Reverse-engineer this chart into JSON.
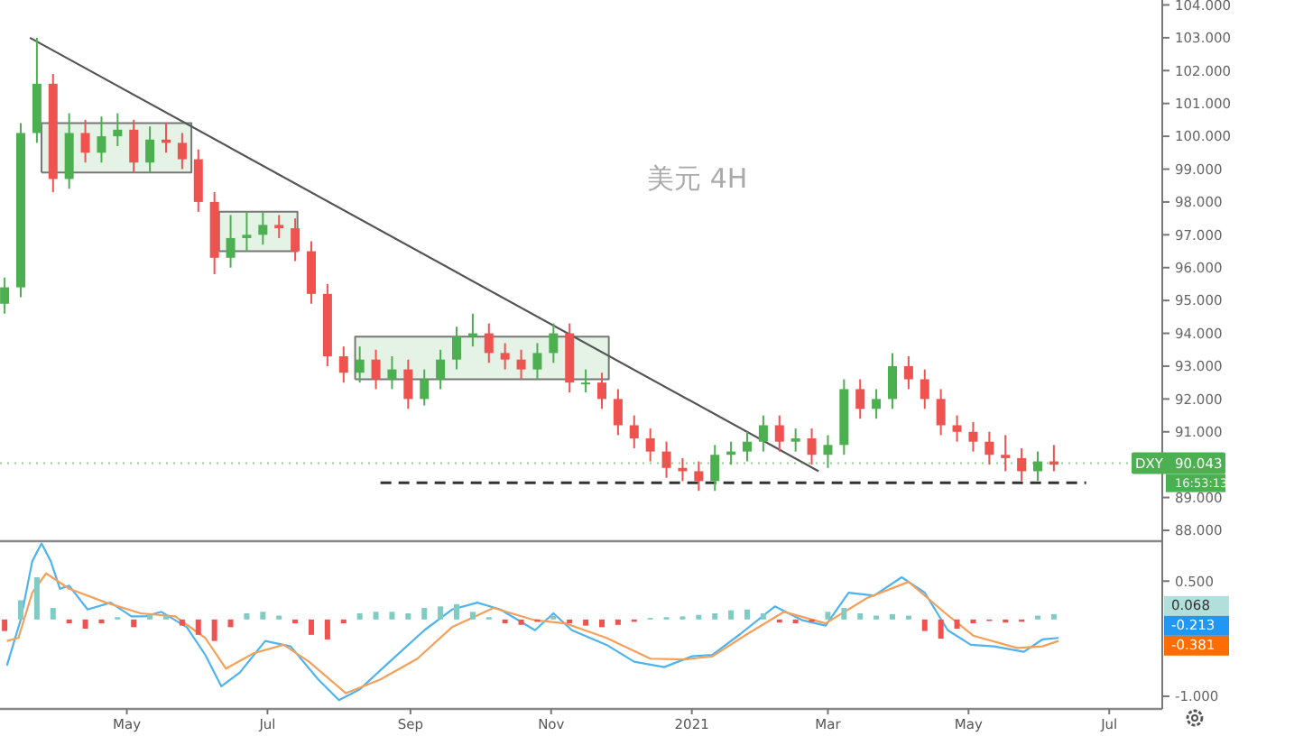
{
  "chart_data": [
    {
      "type": "candlestick",
      "title": "美元 4H",
      "xlim": [
        "2020-03-07",
        "2021-07-24"
      ],
      "ylim": [
        87.67,
        104.15
      ],
      "yticks": [
        {
          "value": 88,
          "label": "88.000"
        },
        {
          "value": 89,
          "label": "89.000"
        },
        {
          "value": 90,
          "label": null
        },
        {
          "value": 91,
          "label": "91.000"
        },
        {
          "value": 92,
          "label": "92.000"
        },
        {
          "value": 93,
          "label": "93.000"
        },
        {
          "value": 94,
          "label": "94.000"
        },
        {
          "value": 95,
          "label": "95.000"
        },
        {
          "value": 96,
          "label": "96.000"
        },
        {
          "value": 97,
          "label": "97.000"
        },
        {
          "value": 98,
          "label": "98.000"
        },
        {
          "value": 99,
          "label": "99.000"
        },
        {
          "value": 100,
          "label": "100.000"
        },
        {
          "value": 101,
          "label": "101.000"
        },
        {
          "value": 102,
          "label": "102.000"
        },
        {
          "value": 103,
          "label": "103.000"
        },
        {
          "value": 104,
          "label": "104.000"
        }
      ],
      "tick_labels": "y",
      "x": [
        "2020-03-09",
        "2020-03-16",
        "2020-03-23",
        "2020-03-30",
        "2020-04-06",
        "2020-04-13",
        "2020-04-20",
        "2020-04-27",
        "2020-05-04",
        "2020-05-11",
        "2020-05-18",
        "2020-05-25",
        "2020-06-01",
        "2020-06-08",
        "2020-06-15",
        "2020-06-22",
        "2020-06-29",
        "2020-07-06",
        "2020-07-13",
        "2020-07-20",
        "2020-07-27",
        "2020-08-03",
        "2020-08-10",
        "2020-08-17",
        "2020-08-24",
        "2020-08-31",
        "2020-09-07",
        "2020-09-14",
        "2020-09-21",
        "2020-09-28",
        "2020-10-05",
        "2020-10-12",
        "2020-10-19",
        "2020-10-26",
        "2020-11-02",
        "2020-11-09",
        "2020-11-16",
        "2020-11-23",
        "2020-11-30",
        "2020-12-07",
        "2020-12-14",
        "2020-12-21",
        "2020-12-28",
        "2021-01-04",
        "2021-01-11",
        "2021-01-18",
        "2021-01-25",
        "2021-02-01",
        "2021-02-08",
        "2021-02-15",
        "2021-02-22",
        "2021-03-01",
        "2021-03-08",
        "2021-03-15",
        "2021-03-22",
        "2021-03-29",
        "2021-04-05",
        "2021-04-12",
        "2021-04-19",
        "2021-04-26",
        "2021-05-03",
        "2021-05-10",
        "2021-05-17",
        "2021-05-24",
        "2021-05-31",
        "2021-06-07"
      ],
      "ohlc": [
        [
          94.9,
          95.7,
          94.6,
          95.4
        ],
        [
          95.4,
          100.4,
          95.1,
          100.1
        ],
        [
          100.1,
          103.0,
          99.8,
          101.6
        ],
        [
          101.6,
          101.9,
          98.3,
          98.7
        ],
        [
          98.7,
          100.7,
          98.4,
          100.1
        ],
        [
          100.1,
          100.5,
          99.2,
          99.5
        ],
        [
          99.5,
          100.6,
          99.2,
          100.0
        ],
        [
          100.0,
          100.7,
          99.7,
          100.2
        ],
        [
          100.2,
          100.5,
          98.9,
          99.2
        ],
        [
          99.2,
          100.3,
          98.9,
          99.9
        ],
        [
          99.9,
          100.4,
          99.5,
          99.8
        ],
        [
          99.8,
          100.1,
          99.0,
          99.3
        ],
        [
          99.3,
          99.6,
          97.7,
          98.0
        ],
        [
          98.0,
          98.3,
          95.8,
          96.3
        ],
        [
          96.3,
          97.6,
          96.0,
          96.9
        ],
        [
          96.9,
          97.7,
          96.5,
          97.0
        ],
        [
          97.0,
          97.7,
          96.7,
          97.3
        ],
        [
          97.3,
          97.6,
          96.9,
          97.2
        ],
        [
          97.2,
          97.5,
          96.2,
          96.5
        ],
        [
          96.5,
          96.8,
          94.9,
          95.2
        ],
        [
          95.2,
          95.5,
          93.0,
          93.3
        ],
        [
          93.3,
          93.6,
          92.5,
          92.8
        ],
        [
          92.8,
          93.6,
          92.5,
          93.2
        ],
        [
          93.2,
          93.5,
          92.3,
          92.6
        ],
        [
          92.6,
          93.3,
          92.3,
          92.9
        ],
        [
          92.9,
          93.2,
          91.7,
          92.0
        ],
        [
          92.0,
          92.9,
          91.8,
          92.6
        ],
        [
          92.6,
          93.5,
          92.3,
          93.2
        ],
        [
          93.2,
          94.2,
          92.9,
          93.9
        ],
        [
          93.9,
          94.6,
          93.6,
          94.0
        ],
        [
          94.0,
          94.3,
          93.1,
          93.4
        ],
        [
          93.4,
          93.7,
          92.9,
          93.2
        ],
        [
          93.2,
          93.5,
          92.6,
          92.9
        ],
        [
          92.9,
          93.7,
          92.6,
          93.4
        ],
        [
          93.4,
          94.3,
          93.1,
          94.0
        ],
        [
          94.0,
          94.3,
          92.2,
          92.5
        ],
        [
          92.5,
          92.9,
          92.2,
          92.5
        ],
        [
          92.5,
          92.8,
          91.7,
          92.0
        ],
        [
          92.0,
          92.3,
          90.9,
          91.2
        ],
        [
          91.2,
          91.5,
          90.5,
          90.8
        ],
        [
          90.8,
          91.1,
          90.1,
          90.4
        ],
        [
          90.4,
          90.7,
          89.6,
          89.9
        ],
        [
          89.9,
          90.2,
          89.5,
          89.8
        ],
        [
          89.8,
          90.1,
          89.2,
          89.5
        ],
        [
          89.5,
          90.6,
          89.2,
          90.3
        ],
        [
          90.3,
          90.7,
          90.0,
          90.4
        ],
        [
          90.4,
          91.0,
          90.1,
          90.7
        ],
        [
          90.7,
          91.5,
          90.4,
          91.2
        ],
        [
          91.2,
          91.5,
          90.4,
          90.7
        ],
        [
          90.7,
          91.1,
          90.4,
          90.8
        ],
        [
          90.8,
          91.1,
          90.0,
          90.3
        ],
        [
          90.3,
          90.9,
          89.9,
          90.6
        ],
        [
          90.6,
          92.6,
          90.3,
          92.3
        ],
        [
          92.3,
          92.6,
          91.4,
          91.7
        ],
        [
          91.7,
          92.3,
          91.4,
          92.0
        ],
        [
          92.0,
          93.4,
          91.7,
          93.0
        ],
        [
          93.0,
          93.3,
          92.3,
          92.6
        ],
        [
          92.6,
          92.9,
          91.7,
          92.0
        ],
        [
          92.0,
          92.3,
          90.9,
          91.2
        ],
        [
          91.2,
          91.5,
          90.7,
          91.0
        ],
        [
          91.0,
          91.3,
          90.4,
          90.7
        ],
        [
          90.7,
          91.0,
          90.0,
          90.3
        ],
        [
          90.3,
          90.9,
          89.8,
          90.2
        ],
        [
          90.2,
          90.5,
          89.5,
          89.8
        ],
        [
          89.8,
          90.4,
          89.5,
          90.1
        ],
        [
          90.1,
          90.6,
          89.8,
          90.0
        ]
      ],
      "series": [
        {
          "type": "area",
          "color": "#777777",
          "x": [
            "2020-03-25",
            "2020-03-25",
            "2020-05-29",
            "2020-05-29",
            "2020-03-25"
          ],
          "values": [
            98.9,
            100.4,
            100.4,
            98.9,
            98.9
          ]
        },
        {
          "type": "area",
          "color": "#777777",
          "x": [
            "2020-06-10",
            "2020-06-10",
            "2020-07-14",
            "2020-07-14",
            "2020-06-10"
          ],
          "values": [
            96.5,
            97.7,
            97.7,
            96.5,
            96.5
          ]
        },
        {
          "type": "area",
          "color": "#777777",
          "x": [
            "2020-08-08",
            "2020-08-08",
            "2020-11-26",
            "2020-11-26",
            "2020-08-08"
          ],
          "values": [
            92.6,
            93.9,
            93.9,
            92.6,
            92.6
          ]
        },
        {
          "type": "line",
          "color": "#555555",
          "x": [
            "2020-03-20",
            "2021-02-25"
          ],
          "values": [
            103.0,
            89.8
          ]
        },
        {
          "type": "line",
          "color": "#333333",
          "line_style": "dashed",
          "x": [
            "2020-08-19",
            "2021-06-21"
          ],
          "values": [
            89.45,
            89.45
          ]
        }
      ],
      "ref_lines": [
        {
          "axis": "y",
          "value": 90.043,
          "label": "DXY",
          "color": "#4caf50",
          "line_style": "dotted"
        }
      ],
      "annotations": [
        "90.043",
        "16:53:13"
      ]
    },
    {
      "type": "line",
      "xlim": [
        "2020-03-07",
        "2021-07-24"
      ],
      "ylim": [
        -1.165,
        1.02
      ],
      "yticks": [
        {
          "value": 0.5,
          "label": "0.500"
        },
        {
          "value": -1,
          "label": "-1.000"
        }
      ],
      "xticks": [
        {
          "value": "2020-05-01",
          "label": "May"
        },
        {
          "value": "2020-07-01",
          "label": "Jul"
        },
        {
          "value": "2020-09-01",
          "label": "Sep"
        },
        {
          "value": "2020-11-01",
          "label": "Nov"
        },
        {
          "value": "2021-01-01",
          "label": "2021"
        },
        {
          "value": "2021-03-01",
          "label": "Mar"
        },
        {
          "value": "2021-05-01",
          "label": "May"
        },
        {
          "value": "2021-07-01",
          "label": "Jul"
        }
      ],
      "series": [
        {
          "type": "bar",
          "color": "#80cbc4",
          "x": [
            "2020-03-16",
            "2020-03-23",
            "2020-03-30",
            "2020-04-06",
            "2020-04-13",
            "2020-04-20",
            "2020-04-27",
            "2020-05-04",
            "2020-05-11",
            "2020-05-18",
            "2020-05-25",
            "2020-06-01",
            "2020-06-08",
            "2020-06-15",
            "2020-06-22",
            "2020-06-29",
            "2020-07-06",
            "2020-07-13",
            "2020-07-20",
            "2020-07-27",
            "2020-08-03",
            "2020-08-10",
            "2020-08-17",
            "2020-08-24",
            "2020-08-31",
            "2020-09-07",
            "2020-09-14",
            "2020-09-21",
            "2020-09-28",
            "2020-10-05",
            "2020-10-12",
            "2020-10-19",
            "2020-10-26",
            "2020-11-02",
            "2020-11-09",
            "2020-11-16",
            "2020-11-23",
            "2020-11-30",
            "2020-12-07",
            "2020-12-14",
            "2020-12-21",
            "2020-12-28",
            "2021-01-04",
            "2021-01-11",
            "2021-01-18",
            "2021-01-25",
            "2021-02-01",
            "2021-02-08",
            "2021-02-15",
            "2021-02-22",
            "2021-03-01",
            "2021-03-08",
            "2021-03-15",
            "2021-03-22",
            "2021-03-29",
            "2021-04-05",
            "2021-04-12",
            "2021-04-19",
            "2021-04-26",
            "2021-05-03",
            "2021-05-10",
            "2021-05-17",
            "2021-05-24",
            "2021-05-31",
            "2021-06-07"
          ],
          "values": [
            0.25,
            0.55,
            0.15,
            null,
            null,
            null,
            0.03,
            null,
            0.06,
            0.05,
            null,
            null,
            null,
            null,
            0.08,
            0.1,
            0.05,
            null,
            null,
            null,
            null,
            0.08,
            0.1,
            0.1,
            0.08,
            0.15,
            0.17,
            0.2,
            0.1,
            0.03,
            null,
            null,
            null,
            0.05,
            null,
            null,
            null,
            null,
            null,
            0.02,
            0.03,
            0.04,
            0.06,
            0.08,
            0.12,
            0.13,
            0.08,
            null,
            null,
            null,
            0.1,
            0.15,
            0.08,
            0.05,
            0.07,
            0.05,
            null,
            null,
            null,
            null,
            null,
            null,
            null,
            0.05,
            0.07
          ]
        },
        {
          "type": "bar",
          "color": "#ef5350",
          "x": [
            "2020-03-09",
            "2020-03-16",
            "2020-03-23",
            "2020-03-30",
            "2020-04-06",
            "2020-04-13",
            "2020-04-20",
            "2020-04-27",
            "2020-05-04",
            "2020-05-11",
            "2020-05-18",
            "2020-05-25",
            "2020-06-01",
            "2020-06-08",
            "2020-06-15",
            "2020-06-22",
            "2020-06-29",
            "2020-07-06",
            "2020-07-13",
            "2020-07-20",
            "2020-07-27",
            "2020-08-03",
            "2020-08-10",
            "2020-08-17",
            "2020-08-24",
            "2020-08-31",
            "2020-09-07",
            "2020-09-14",
            "2020-09-21",
            "2020-09-28",
            "2020-10-05",
            "2020-10-12",
            "2020-10-19",
            "2020-10-26",
            "2020-11-02",
            "2020-11-09",
            "2020-11-16",
            "2020-11-23",
            "2020-11-30",
            "2020-12-07",
            "2020-12-14",
            "2020-12-21",
            "2020-12-28",
            "2021-01-04",
            "2021-01-11",
            "2021-01-18",
            "2021-01-25",
            "2021-02-01",
            "2021-02-08",
            "2021-02-15",
            "2021-02-22",
            "2021-03-01",
            "2021-03-08",
            "2021-03-15",
            "2021-03-22",
            "2021-03-29",
            "2021-04-05",
            "2021-04-12",
            "2021-04-19",
            "2021-04-26",
            "2021-05-03",
            "2021-05-10",
            "2021-05-17",
            "2021-05-24"
          ],
          "values": [
            -0.15,
            null,
            null,
            null,
            -0.05,
            -0.12,
            -0.05,
            null,
            -0.1,
            null,
            null,
            -0.08,
            -0.2,
            -0.28,
            -0.1,
            null,
            null,
            null,
            -0.05,
            -0.2,
            -0.26,
            -0.05,
            null,
            null,
            null,
            null,
            null,
            null,
            null,
            null,
            null,
            -0.05,
            -0.07,
            -0.03,
            null,
            -0.05,
            -0.08,
            -0.1,
            -0.07,
            -0.03,
            null,
            null,
            null,
            null,
            null,
            null,
            null,
            null,
            -0.04,
            -0.05,
            -0.03,
            null,
            null,
            null,
            null,
            null,
            null,
            -0.15,
            -0.25,
            -0.12,
            -0.05,
            -0.02,
            -0.04,
            -0.03
          ]
        },
        {
          "color": "#4fb3ef",
          "x": [
            "2020-03-10",
            "2020-03-16",
            "2020-03-21",
            "2020-03-25",
            "2020-03-29",
            "2020-04-02",
            "2020-04-06",
            "2020-04-14",
            "2020-04-24",
            "2020-05-03",
            "2020-05-09",
            "2020-05-16",
            "2020-05-27",
            "2020-06-04",
            "2020-06-11",
            "2020-06-19",
            "2020-06-30",
            "2020-07-11",
            "2020-07-23",
            "2020-08-01",
            "2020-08-10",
            "2020-08-23",
            "2020-09-07",
            "2020-09-19",
            "2020-09-30",
            "2020-10-10",
            "2020-10-25",
            "2020-11-02",
            "2020-11-10",
            "2020-11-25",
            "2020-12-07",
            "2020-12-20",
            "2021-01-01",
            "2021-01-10",
            "2021-01-22",
            "2021-02-06",
            "2021-02-18",
            "2021-02-28",
            "2021-03-10",
            "2021-03-21",
            "2021-04-02",
            "2021-04-12",
            "2021-04-22",
            "2021-05-02",
            "2021-05-12",
            "2021-05-25",
            "2021-06-02",
            "2021-06-09"
          ],
          "values": [
            -0.6,
            0,
            0.76,
            0.99,
            0.76,
            0.4,
            0.44,
            0.13,
            0.22,
            0.04,
            0.04,
            0.1,
            -0.1,
            -0.46,
            -0.87,
            -0.69,
            -0.28,
            -0.35,
            -0.78,
            -1.05,
            -0.91,
            -0.55,
            -0.14,
            0.13,
            0.22,
            0.13,
            -0.14,
            0.08,
            -0.14,
            -0.33,
            -0.55,
            -0.62,
            -0.48,
            -0.46,
            -0.19,
            0.17,
            -0.01,
            -0.08,
            0.35,
            0.31,
            0.55,
            0.35,
            -0.14,
            -0.33,
            -0.35,
            -0.42,
            -0.26,
            -0.24
          ]
        },
        {
          "color": "#f5a05a",
          "x": [
            "2020-03-10",
            "2020-03-15",
            "2020-03-21",
            "2020-03-27",
            "2020-04-06",
            "2020-04-22",
            "2020-05-07",
            "2020-05-22",
            "2020-06-04",
            "2020-06-13",
            "2020-06-25",
            "2020-07-08",
            "2020-07-19",
            "2020-08-04",
            "2020-08-19",
            "2020-09-04",
            "2020-09-19",
            "2020-10-07",
            "2020-10-25",
            "2020-11-07",
            "2020-11-25",
            "2020-12-14",
            "2020-12-29",
            "2021-01-10",
            "2021-01-25",
            "2021-02-10",
            "2021-02-28",
            "2021-03-18",
            "2021-04-05",
            "2021-04-21",
            "2021-05-03",
            "2021-05-22",
            "2021-06-02",
            "2021-06-09"
          ],
          "values": [
            -0.28,
            -0.24,
            0.35,
            0.6,
            0.4,
            0.22,
            0.08,
            0.04,
            -0.24,
            -0.64,
            -0.44,
            -0.33,
            -0.55,
            -0.96,
            -0.78,
            -0.51,
            -0.1,
            0.15,
            -0.01,
            -0.05,
            -0.24,
            -0.51,
            -0.52,
            -0.48,
            -0.19,
            0.1,
            -0.05,
            0.28,
            0.49,
            0.08,
            -0.21,
            -0.37,
            -0.35,
            -0.28
          ]
        }
      ],
      "annotations": [
        "0.068",
        "-0.213",
        "-0.381"
      ]
    }
  ]
}
